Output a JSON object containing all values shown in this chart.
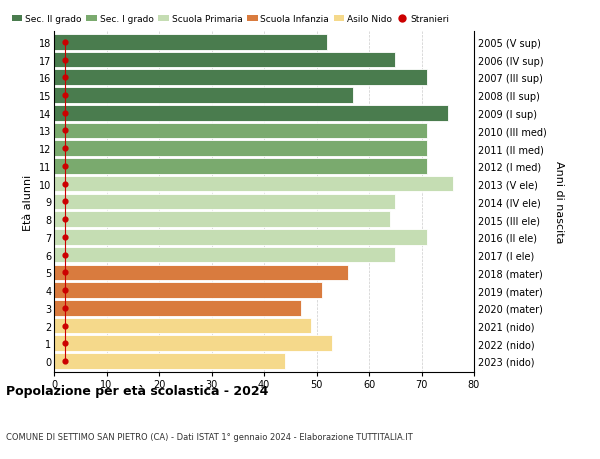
{
  "ages": [
    18,
    17,
    16,
    15,
    14,
    13,
    12,
    11,
    10,
    9,
    8,
    7,
    6,
    5,
    4,
    3,
    2,
    1,
    0
  ],
  "years": [
    "2005 (V sup)",
    "2006 (IV sup)",
    "2007 (III sup)",
    "2008 (II sup)",
    "2009 (I sup)",
    "2010 (III med)",
    "2011 (II med)",
    "2012 (I med)",
    "2013 (V ele)",
    "2014 (IV ele)",
    "2015 (III ele)",
    "2016 (II ele)",
    "2017 (I ele)",
    "2018 (mater)",
    "2019 (mater)",
    "2020 (mater)",
    "2021 (nido)",
    "2022 (nido)",
    "2023 (nido)"
  ],
  "values": [
    52,
    65,
    71,
    57,
    75,
    71,
    71,
    71,
    76,
    65,
    64,
    71,
    65,
    56,
    51,
    47,
    49,
    53,
    44
  ],
  "stranieri_values": [
    2,
    2,
    2,
    2,
    2,
    2,
    2,
    2,
    2,
    2,
    2,
    2,
    2,
    2,
    2,
    2,
    2,
    2,
    2
  ],
  "categories": {
    "sec2": {
      "ages": [
        14,
        15,
        16,
        17,
        18
      ],
      "color": "#4a7c4e"
    },
    "sec1": {
      "ages": [
        11,
        12,
        13
      ],
      "color": "#7aaa6e"
    },
    "primaria": {
      "ages": [
        6,
        7,
        8,
        9,
        10
      ],
      "color": "#c5ddb3"
    },
    "infanzia": {
      "ages": [
        3,
        4,
        5
      ],
      "color": "#d97b3e"
    },
    "nido": {
      "ages": [
        0,
        1,
        2
      ],
      "color": "#f5d98b"
    }
  },
  "title": "Popolazione per età scolastica - 2024",
  "subtitle": "COMUNE DI SETTIMO SAN PIETRO (CA) - Dati ISTAT 1° gennaio 2024 - Elaborazione TUTTITALIA.IT",
  "ylabel": "Età alunni",
  "ylabel_right": "Anni di nascita",
  "xlim": [
    0,
    80
  ],
  "xticks": [
    0,
    10,
    20,
    30,
    40,
    50,
    60,
    70,
    80
  ],
  "background_color": "#ffffff",
  "grid_color": "#cccccc",
  "legend_labels": [
    "Sec. II grado",
    "Sec. I grado",
    "Scuola Primaria",
    "Scuola Infanzia",
    "Asilo Nido",
    "Stranieri"
  ],
  "legend_colors": [
    "#4a7c4e",
    "#7aaa6e",
    "#c5ddb3",
    "#d97b3e",
    "#f5d98b",
    "#cc0000"
  ]
}
